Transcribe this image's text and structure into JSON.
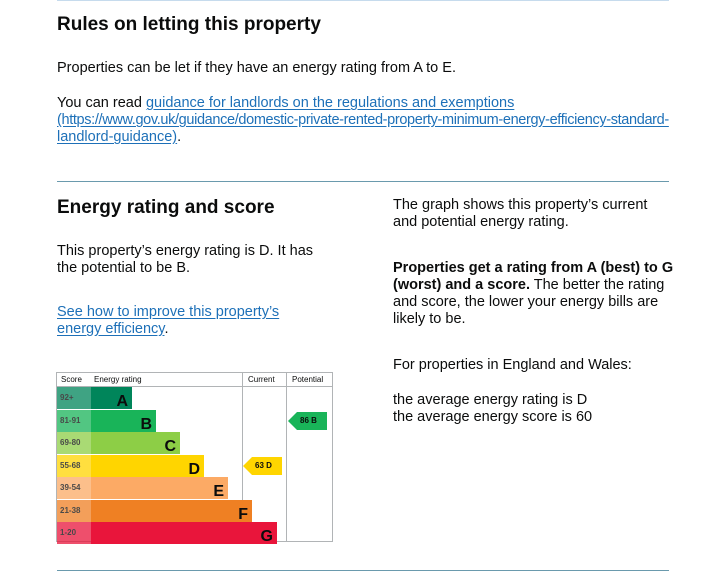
{
  "letting": {
    "heading": "Rules on letting this property",
    "para1": "Properties can be let if they have an energy rating from A to E.",
    "read_prefix": "You can read ",
    "guidance_link_line1": "guidance for landlords on the regulations and exemptions",
    "guidance_link_line2": "(https://www.gov.uk/guidance/domestic-private-rented-property-minimum-energy-efficiency-standard-",
    "guidance_link_line3": "landlord-guidance)",
    "period": "."
  },
  "energy": {
    "heading": "Energy rating and score",
    "rating_line1": "This property’s energy rating is D. It has",
    "rating_line2": "the potential to be B.",
    "improve_link_line1": "See how to improve this property’s",
    "improve_link_line2": "energy efficiency",
    "improve_period": ".",
    "graph_line1": "The graph shows this property’s current",
    "graph_line2": "and potential energy rating.",
    "bold_line1": "Properties get a rating from A (best) to G",
    "bold_line2": "(worst) and a score.",
    "normal_after_bold": " The better the rating",
    "explain_line2": "and score, the lower your energy bills are",
    "explain_line3": "likely to be.",
    "region": "For properties in England and Wales:",
    "avg_rating": "the average energy rating is D",
    "avg_score": "the average energy score is 60"
  },
  "chart_data": {
    "type": "table",
    "headers": {
      "score": "Score",
      "rating": "Energy rating",
      "current": "Current",
      "potential": "Potential"
    },
    "bands": [
      {
        "range": "92+",
        "letter": "A",
        "color": "#00855a",
        "fill": 0.17
      },
      {
        "range": "81-91",
        "letter": "B",
        "color": "#19b459",
        "fill": 0.27
      },
      {
        "range": "69-80",
        "letter": "C",
        "color": "#8dce46",
        "fill": 0.37
      },
      {
        "range": "55-68",
        "letter": "D",
        "color": "#ffd500",
        "fill": 0.47
      },
      {
        "range": "39-54",
        "letter": "E",
        "color": "#fcaa65",
        "fill": 0.57
      },
      {
        "range": "21-38",
        "letter": "F",
        "color": "#ef8023",
        "fill": 0.67
      },
      {
        "range": "1-20",
        "letter": "G",
        "color": "#e9153b",
        "fill": 0.77
      }
    ],
    "current": {
      "label": "63 D",
      "score": 63,
      "band": "D",
      "color": "#ffd500"
    },
    "potential": {
      "label": "86 B",
      "score": 86,
      "band": "B",
      "color": "#19b459"
    }
  }
}
